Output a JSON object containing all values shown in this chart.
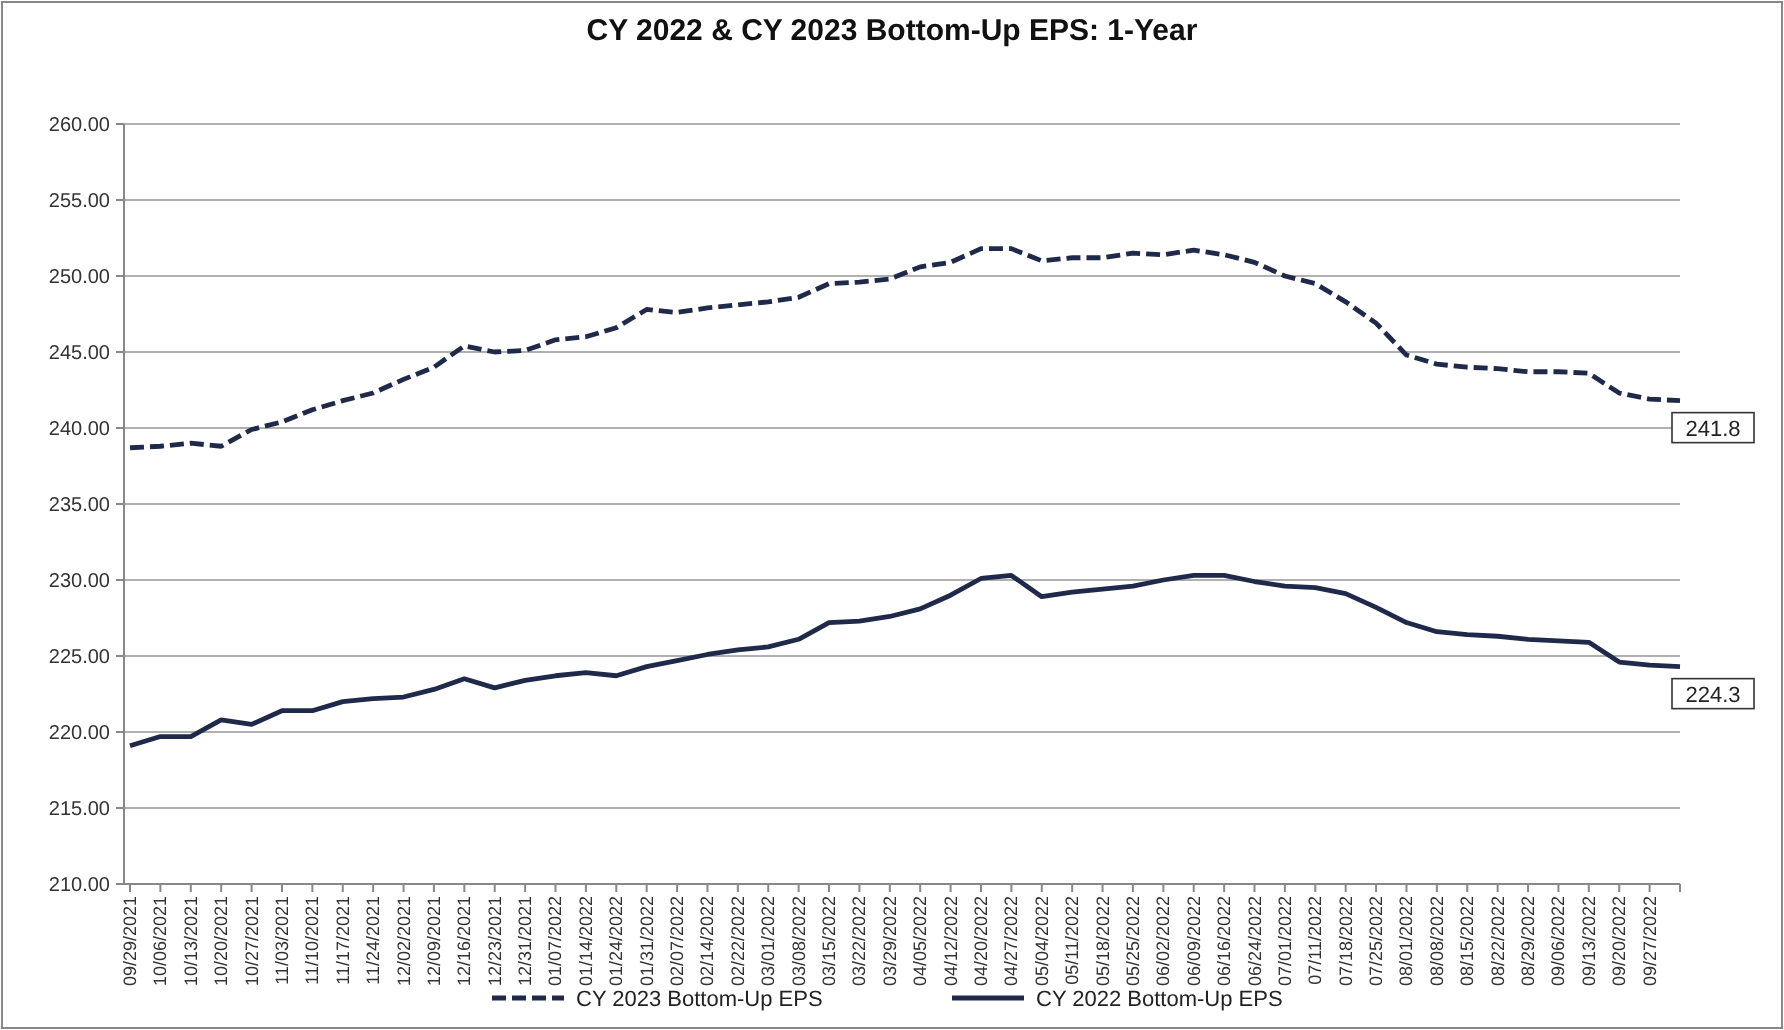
{
  "chart_data": {
    "type": "line",
    "title": "CY 2022 & CY 2023 Bottom-Up EPS: 1-Year",
    "categories": [
      "09/29/2021",
      "10/06/2021",
      "10/13/2021",
      "10/20/2021",
      "10/27/2021",
      "11/03/2021",
      "11/10/2021",
      "11/17/2021",
      "11/24/2021",
      "12/02/2021",
      "12/09/2021",
      "12/16/2021",
      "12/23/2021",
      "12/31/2021",
      "01/07/2022",
      "01/14/2022",
      "01/24/2022",
      "01/31/2022",
      "02/07/2022",
      "02/14/2022",
      "02/22/2022",
      "03/01/2022",
      "03/08/2022",
      "03/15/2022",
      "03/22/2022",
      "03/29/2022",
      "04/05/2022",
      "04/12/2022",
      "04/20/2022",
      "04/27/2022",
      "05/04/2022",
      "05/11/2022",
      "05/18/2022",
      "05/25/2022",
      "06/02/2022",
      "06/09/2022",
      "06/16/2022",
      "06/24/2022",
      "07/01/2022",
      "07/11/2022",
      "07/18/2022",
      "07/25/2022",
      "08/01/2022",
      "08/08/2022",
      "08/15/2022",
      "08/22/2022",
      "08/29/2022",
      "09/06/2022",
      "09/13/2022",
      "09/20/2022",
      "09/27/2022",
      null
    ],
    "series": [
      {
        "name": "CY 2023 Bottom-Up EPS",
        "color": "#1f2a4a",
        "line_style": "dashed",
        "values": [
          238.7,
          238.8,
          239.0,
          238.8,
          239.9,
          240.4,
          241.2,
          241.8,
          242.3,
          243.2,
          244.0,
          245.4,
          245.0,
          245.1,
          245.8,
          246.0,
          246.6,
          247.8,
          247.6,
          247.9,
          248.1,
          248.3,
          248.6,
          249.5,
          249.6,
          249.8,
          250.6,
          250.9,
          251.8,
          251.8,
          251.0,
          251.2,
          251.2,
          251.5,
          251.4,
          251.7,
          251.4,
          250.9,
          250.0,
          249.5,
          248.3,
          246.9,
          244.8,
          244.2,
          244.0,
          243.9,
          243.7,
          243.7,
          243.6,
          242.3,
          241.9,
          241.8
        ],
        "value_labels": [
          null,
          null,
          null,
          null,
          null,
          null,
          null,
          null,
          null,
          null,
          null,
          null,
          null,
          null,
          null,
          null,
          null,
          null,
          null,
          null,
          null,
          null,
          null,
          null,
          null,
          null,
          null,
          null,
          null,
          null,
          null,
          null,
          null,
          null,
          null,
          null,
          null,
          null,
          null,
          null,
          null,
          null,
          null,
          null,
          null,
          null,
          null,
          null,
          null,
          null,
          null,
          "241.8"
        ]
      },
      {
        "name": "CY 2022 Bottom-Up EPS",
        "color": "#1f2a4a",
        "line_style": "solid",
        "values": [
          219.1,
          219.7,
          219.7,
          220.8,
          220.5,
          221.4,
          221.4,
          222.0,
          222.2,
          222.3,
          222.8,
          223.5,
          222.9,
          223.4,
          223.7,
          223.9,
          223.7,
          224.3,
          224.7,
          225.1,
          225.4,
          225.6,
          226.1,
          227.2,
          227.3,
          227.6,
          228.1,
          229.0,
          230.1,
          230.3,
          228.9,
          229.2,
          229.4,
          229.6,
          230.0,
          230.3,
          230.3,
          229.9,
          229.6,
          229.5,
          229.1,
          228.2,
          227.2,
          226.6,
          226.4,
          226.3,
          226.1,
          226.0,
          225.9,
          224.6,
          224.4,
          224.3
        ],
        "value_labels": [
          null,
          null,
          null,
          null,
          null,
          null,
          null,
          null,
          null,
          null,
          null,
          null,
          null,
          null,
          null,
          null,
          null,
          null,
          null,
          null,
          null,
          null,
          null,
          null,
          null,
          null,
          null,
          null,
          null,
          null,
          null,
          null,
          null,
          null,
          null,
          null,
          null,
          null,
          null,
          null,
          null,
          null,
          null,
          null,
          null,
          null,
          null,
          null,
          null,
          null,
          null,
          "224.3"
        ]
      }
    ],
    "ylim": [
      210,
      260
    ],
    "yticks": [
      {
        "value": 210,
        "label": "210.00"
      },
      {
        "value": 215,
        "label": "215.00"
      },
      {
        "value": 220,
        "label": "220.00"
      },
      {
        "value": 225,
        "label": "225.00"
      },
      {
        "value": 230,
        "label": "230.00"
      },
      {
        "value": 235,
        "label": "235.00"
      },
      {
        "value": 240,
        "label": "240.00"
      },
      {
        "value": 245,
        "label": "245.00"
      },
      {
        "value": 250,
        "label": "250.00"
      },
      {
        "value": 255,
        "label": "255.00"
      },
      {
        "value": 260,
        "label": "260.00"
      }
    ],
    "grid": "y",
    "legend": "bottom",
    "marker": "none"
  }
}
